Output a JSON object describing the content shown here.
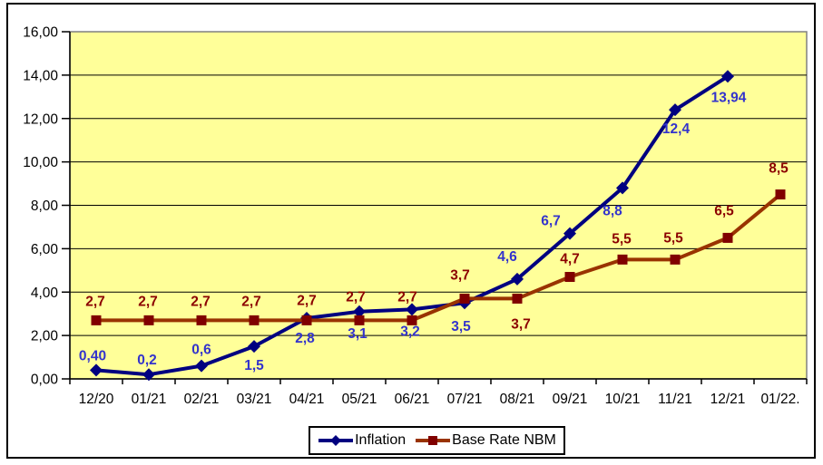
{
  "chart_data": {
    "type": "line",
    "title": "",
    "xlabel": "",
    "ylabel": "",
    "categories": [
      "12/20",
      "01/21",
      "02/21",
      "03/21",
      "04/21",
      "05/21",
      "06/21",
      "07/21",
      "08/21",
      "09/21",
      "10/21",
      "11/21",
      "12/21",
      "01/22."
    ],
    "ylim": [
      0,
      16
    ],
    "y_ticks": [
      {
        "value": 0,
        "label": "0,00"
      },
      {
        "value": 2,
        "label": "2,00"
      },
      {
        "value": 4,
        "label": "4,00"
      },
      {
        "value": 6,
        "label": "6,00"
      },
      {
        "value": 8,
        "label": "8,00"
      },
      {
        "value": 10,
        "label": "10,00"
      },
      {
        "value": 12,
        "label": "12,00"
      },
      {
        "value": 14,
        "label": "14,00"
      },
      {
        "value": 16,
        "label": "16,00"
      }
    ],
    "grid": true,
    "plot_bg_color": "#FFFF99",
    "plot_border_color": "#808080",
    "gridline_color": "#000000",
    "legend_position": "bottom",
    "series": [
      {
        "name": "Inflation",
        "line_color": "#000080",
        "marker": "diamond",
        "marker_color": "#000080",
        "label_color": "#3333CC",
        "points": [
          {
            "value": 0.4,
            "label": "0,40",
            "dx": -4,
            "dy": -11
          },
          {
            "value": 0.2,
            "label": "0,2",
            "dx": -2,
            "dy": -11
          },
          {
            "value": 0.6,
            "label": "0,6",
            "dx": 0,
            "dy": -13
          },
          {
            "value": 1.5,
            "label": "1,5",
            "dx": 0,
            "dy": 26
          },
          {
            "value": 2.8,
            "label": "2,8",
            "dx": -2,
            "dy": 27
          },
          {
            "value": 3.1,
            "label": "3,1",
            "dx": -2,
            "dy": 29
          },
          {
            "value": 3.2,
            "label": "3,2",
            "dx": -2,
            "dy": 29
          },
          {
            "value": 3.5,
            "label": "3,5",
            "dx": -4,
            "dy": 31
          },
          {
            "value": 4.6,
            "label": "4,6",
            "dx": -11,
            "dy": -20
          },
          {
            "value": 6.7,
            "label": "6,7",
            "dx": -21,
            "dy": -9
          },
          {
            "value": 8.8,
            "label": "8,8",
            "dx": -11,
            "dy": 30
          },
          {
            "value": 12.4,
            "label": "12,4",
            "dx": 1,
            "dy": 26
          },
          {
            "value": 13.94,
            "label": "13,94",
            "dx": 1,
            "dy": 28
          }
        ]
      },
      {
        "name": "Base Rate NBM",
        "line_color": "#993300",
        "marker": "square",
        "marker_color": "#800000",
        "label_color": "#8B0000",
        "points": [
          {
            "value": 2.7,
            "label": "2,7",
            "dx": -1,
            "dy": -16
          },
          {
            "value": 2.7,
            "label": "2,7",
            "dx": -1,
            "dy": -16
          },
          {
            "value": 2.7,
            "label": "2,7",
            "dx": -1,
            "dy": -16
          },
          {
            "value": 2.7,
            "label": "2,7",
            "dx": -3,
            "dy": -16
          },
          {
            "value": 2.7,
            "label": "2,7",
            "dx": 0,
            "dy": -17
          },
          {
            "value": 2.7,
            "label": "2,7",
            "dx": -4,
            "dy": -21
          },
          {
            "value": 2.7,
            "label": "2,7",
            "dx": -5,
            "dy": -21
          },
          {
            "value": 3.7,
            "label": "3,7",
            "dx": -5,
            "dy": -21
          },
          {
            "value": 3.7,
            "label": "3,7",
            "dx": 4,
            "dy": 33
          },
          {
            "value": 4.7,
            "label": "4,7",
            "dx": 0,
            "dy": -15
          },
          {
            "value": 5.5,
            "label": "5,5",
            "dx": -1,
            "dy": -18
          },
          {
            "value": 5.5,
            "label": "5,5",
            "dx": -2,
            "dy": -19
          },
          {
            "value": 6.5,
            "label": "6,5",
            "dx": -4,
            "dy": -25
          },
          {
            "value": 8.5,
            "label": "8,5",
            "dx": -2,
            "dy": -24
          }
        ]
      }
    ]
  },
  "legend": {
    "items": [
      {
        "label": "Inflation"
      },
      {
        "label": "Base Rate NBM"
      }
    ]
  }
}
